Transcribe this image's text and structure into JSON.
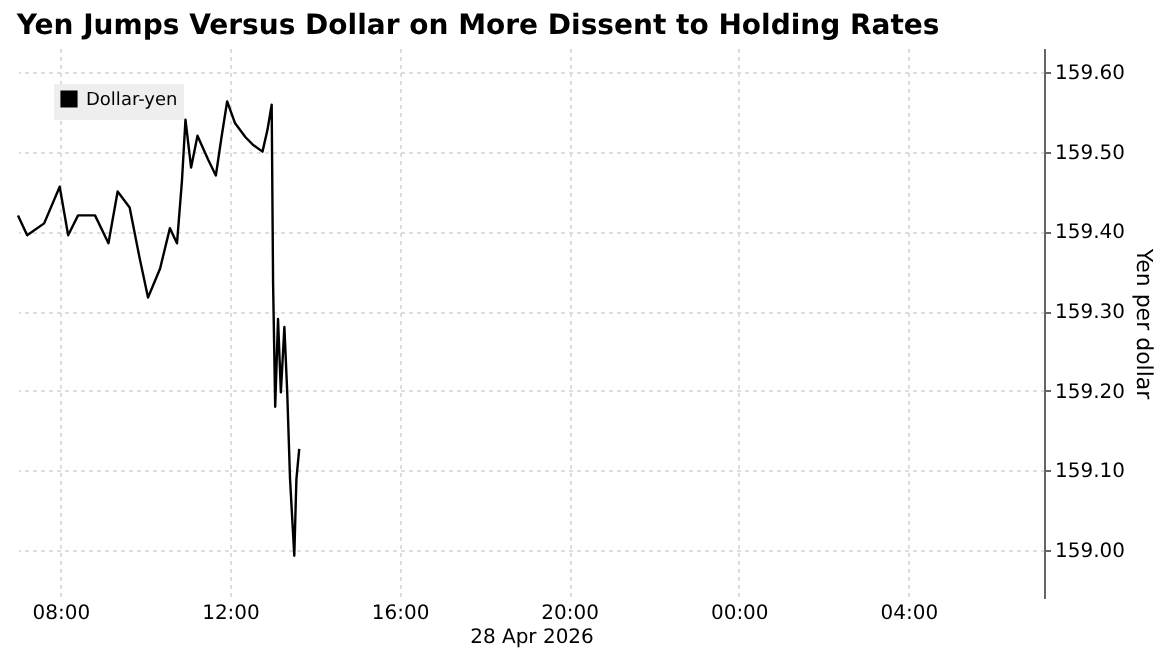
{
  "chart_data": {
    "type": "line",
    "title": "Yen Jumps Versus Dollar on More Dissent to Holding Rates",
    "xlabel": "28 Apr 2026",
    "ylabel": "Yen per dollar",
    "xlim": [
      "2026-04-28T07:00",
      "2026-04-29T07:12"
    ],
    "xticks": [
      {
        "value": "2026-04-28T08:00",
        "label": "08:00"
      },
      {
        "value": "2026-04-28T12:00",
        "label": "12:00"
      },
      {
        "value": "2026-04-28T16:00",
        "label": "16:00"
      },
      {
        "value": "2026-04-28T20:00",
        "label": "20:00"
      },
      {
        "value": "2026-04-29T00:00",
        "label": "00:00"
      },
      {
        "value": "2026-04-29T04:00",
        "label": "04:00"
      }
    ],
    "ylim": [
      158.94,
      159.63
    ],
    "yticks": [
      {
        "value": 159.0,
        "label": "159.00"
      },
      {
        "value": 159.1,
        "label": "159.10"
      },
      {
        "value": 159.2,
        "label": "159.20"
      },
      {
        "value": 159.3,
        "label": "159.30"
      },
      {
        "value": 159.4,
        "label": "159.40"
      },
      {
        "value": 159.5,
        "label": "159.50"
      },
      {
        "value": 159.6,
        "label": "159.60"
      }
    ],
    "grid": true,
    "legend": "top left",
    "series": [
      {
        "name": "Dollar-yen",
        "color": "#000000",
        "x": [
          "2026-04-28T07:00",
          "2026-04-28T07:13",
          "2026-04-28T07:37",
          "2026-04-28T07:59",
          "2026-04-28T08:11",
          "2026-04-28T08:25",
          "2026-04-28T08:49",
          "2026-04-28T09:08",
          "2026-04-28T09:21",
          "2026-04-28T09:38",
          "2026-04-28T09:52",
          "2026-04-28T10:04",
          "2026-04-28T10:21",
          "2026-04-28T10:35",
          "2026-04-28T10:45",
          "2026-04-28T10:52",
          "2026-04-28T10:57",
          "2026-04-28T11:05",
          "2026-04-28T11:14",
          "2026-04-28T11:29",
          "2026-04-28T11:40",
          "2026-04-28T11:48",
          "2026-04-28T11:56",
          "2026-04-28T12:07",
          "2026-04-28T12:22",
          "2026-04-28T12:32",
          "2026-04-28T12:46",
          "2026-04-28T12:53",
          "2026-04-28T12:59",
          "2026-04-28T13:01",
          "2026-04-28T13:04",
          "2026-04-28T13:08",
          "2026-04-28T13:12",
          "2026-04-28T13:17",
          "2026-04-28T13:21",
          "2026-04-28T13:25",
          "2026-04-28T13:31",
          "2026-04-28T13:34",
          "2026-04-28T13:38"
        ],
        "values": [
          159.42,
          159.395,
          159.41,
          159.456,
          159.395,
          159.42,
          159.42,
          159.385,
          159.45,
          159.43,
          159.367,
          159.317,
          159.353,
          159.404,
          159.385,
          159.463,
          159.54,
          159.48,
          159.52,
          159.49,
          159.47,
          159.518,
          159.563,
          159.536,
          159.518,
          159.509,
          159.5,
          159.527,
          159.559,
          159.335,
          159.18,
          159.29,
          159.198,
          159.28,
          159.198,
          159.089,
          158.993,
          159.089,
          159.127
        ]
      }
    ]
  }
}
